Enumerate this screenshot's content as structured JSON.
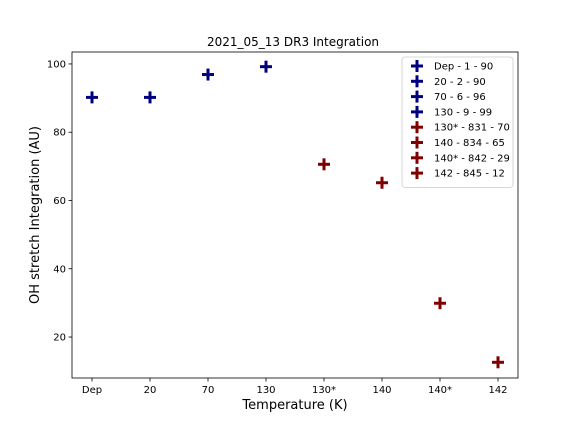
{
  "chart_data": {
    "type": "scatter",
    "title": "2021_05_13 DR3 Integration",
    "xlabel": "Temperature (K)",
    "ylabel": "OH stretch Integration (AU)",
    "categories": [
      "Dep",
      "20",
      "70",
      "130",
      "130*",
      "140",
      "140*",
      "142"
    ],
    "ylim": [
      8,
      103.5
    ],
    "yticks": [
      20,
      40,
      60,
      80,
      100
    ],
    "legend_position": "top-right",
    "grid": false,
    "series": [
      {
        "name": "Dep - 1 - 90",
        "x": "Dep",
        "y": 90.2,
        "color": "#00007f"
      },
      {
        "name": "20 - 2 - 90",
        "x": "20",
        "y": 90.2,
        "color": "#00007f"
      },
      {
        "name": "70 - 6 - 96",
        "x": "70",
        "y": 96.9,
        "color": "#00007f"
      },
      {
        "name": "130 - 9 - 99",
        "x": "130",
        "y": 99.2,
        "color": "#00007f"
      },
      {
        "name": "130* - 831 - 70",
        "x": "130*",
        "y": 70.6,
        "color": "#7f0000"
      },
      {
        "name": "140 - 834 - 65",
        "x": "140",
        "y": 65.2,
        "color": "#7f0000"
      },
      {
        "name": "140* - 842 - 29",
        "x": "140*",
        "y": 29.9,
        "color": "#7f0000"
      },
      {
        "name": "142 - 845 - 12",
        "x": "142",
        "y": 12.6,
        "color": "#7f0000"
      }
    ]
  }
}
